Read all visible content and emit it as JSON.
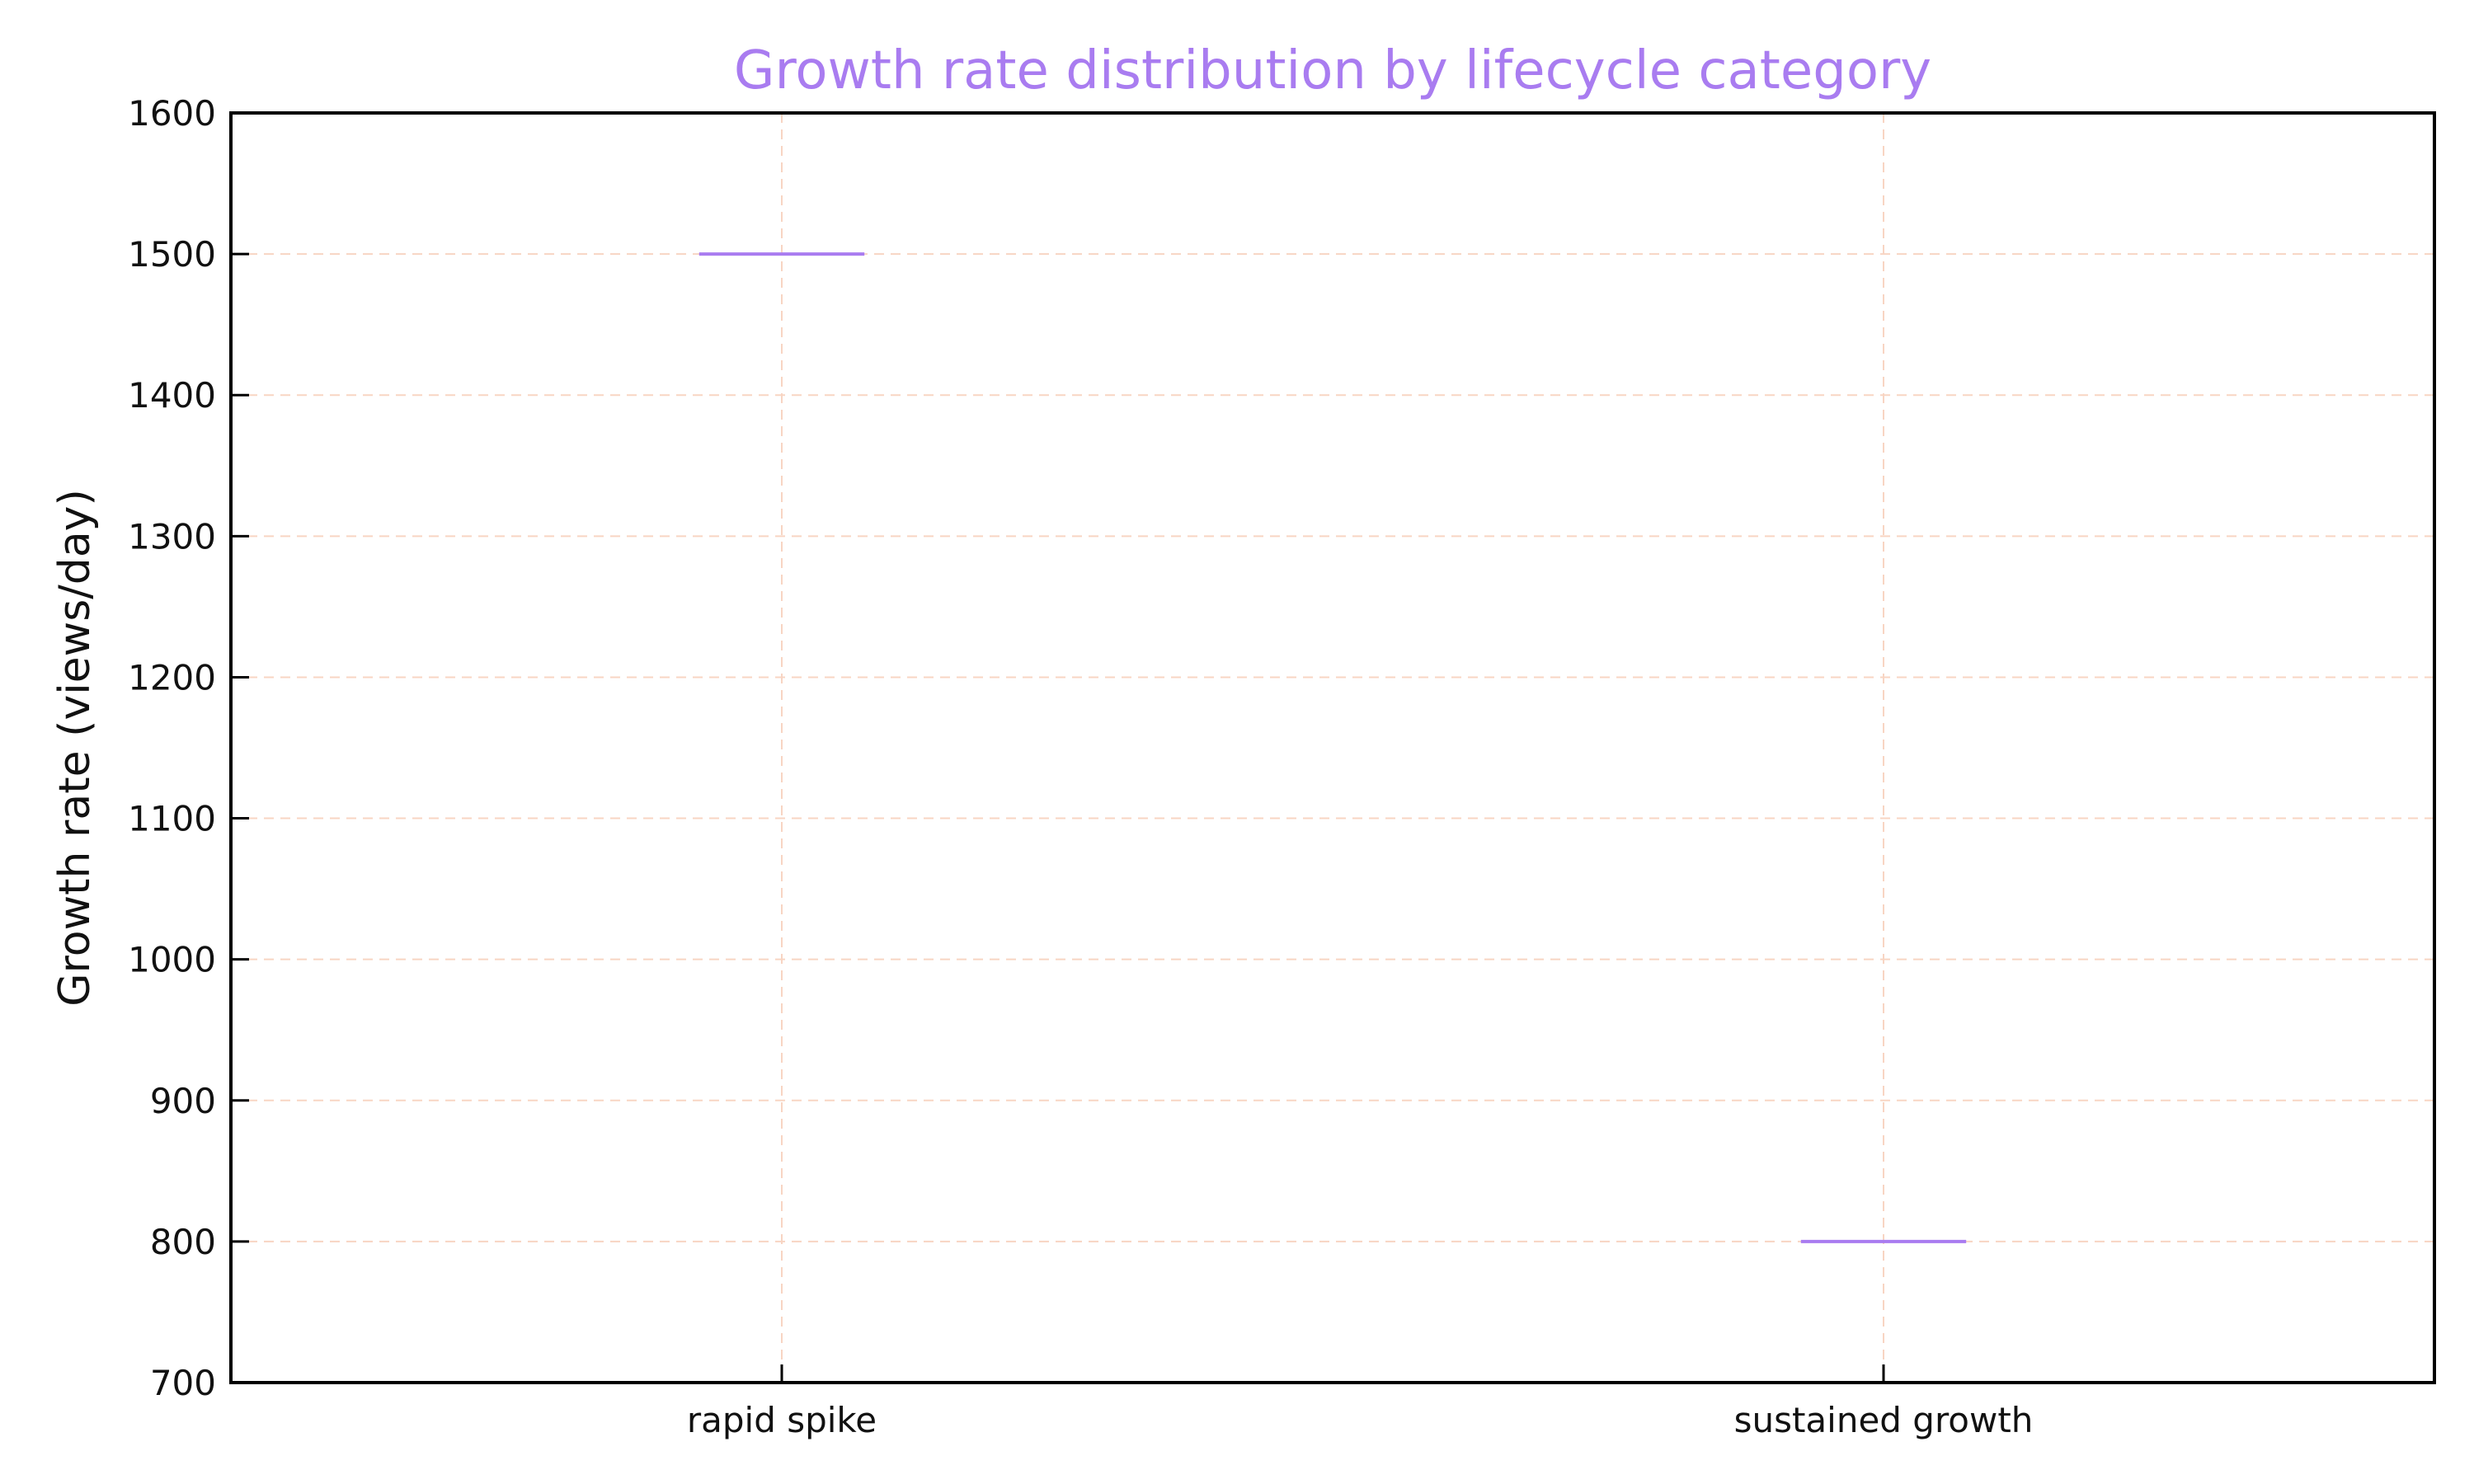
{
  "chart_data": {
    "type": "box",
    "title": "Growth rate distribution by lifecycle category",
    "xlabel": "",
    "ylabel": "Growth rate (views/day)",
    "categories": [
      "rapid spike",
      "sustained growth"
    ],
    "values": [
      1500,
      800
    ],
    "ylim": [
      700,
      1600
    ],
    "yticks": [
      "700",
      "800",
      "900",
      "1000",
      "1100",
      "1200",
      "1300",
      "1400",
      "1500",
      "1600"
    ],
    "grid": true,
    "legend": "none",
    "colors": {
      "title": "#a97cf0",
      "box_line": "#a97cf0",
      "grid": "#f8d5c3",
      "axes": "#000000"
    }
  }
}
